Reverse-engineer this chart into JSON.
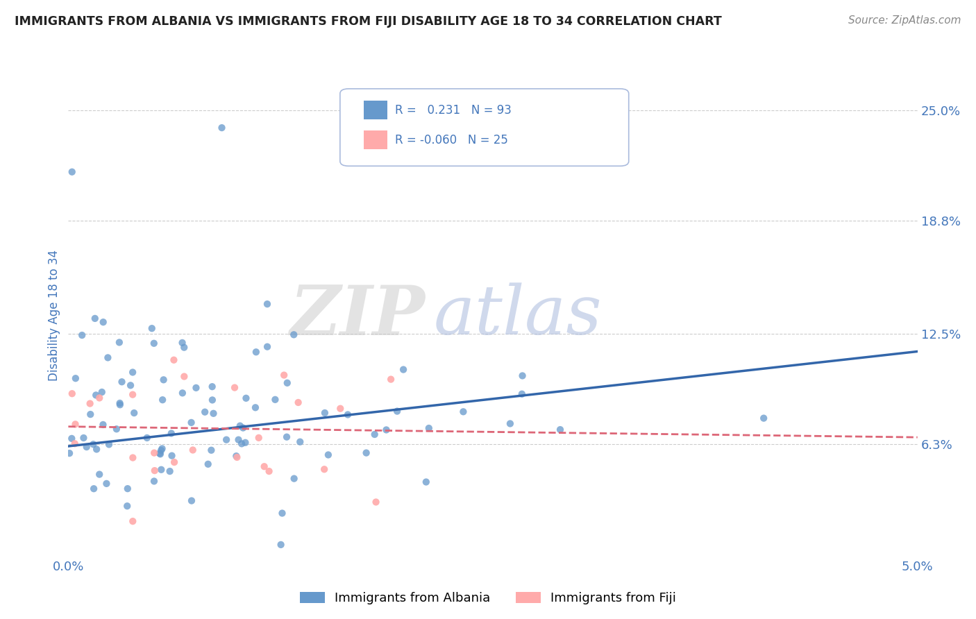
{
  "title": "IMMIGRANTS FROM ALBANIA VS IMMIGRANTS FROM FIJI DISABILITY AGE 18 TO 34 CORRELATION CHART",
  "source": "Source: ZipAtlas.com",
  "ylabel": "Disability Age 18 to 34",
  "ytick_labels": [
    "6.3%",
    "12.5%",
    "18.8%",
    "25.0%"
  ],
  "ytick_values": [
    0.063,
    0.125,
    0.188,
    0.25
  ],
  "xlim": [
    0.0,
    0.05
  ],
  "ylim": [
    0.0,
    0.27
  ],
  "albania_color": "#6699cc",
  "albania_line_color": "#3366aa",
  "fiji_color": "#ffaaaa",
  "fiji_line_color": "#dd6677",
  "albania_R": 0.231,
  "albania_N": 93,
  "fiji_R": -0.06,
  "fiji_N": 25,
  "albania_label": "Immigrants from Albania",
  "fiji_label": "Immigrants from Fiji",
  "title_color": "#222222",
  "axis_label_color": "#4477bb",
  "background_color": "#ffffff",
  "grid_color": "#cccccc",
  "legend_border_color": "#aabbdd",
  "watermark_zip_color": "#cccccc",
  "watermark_atlas_color": "#aabbdd",
  "albania_line_intercept": 0.06,
  "albania_line_slope": 1.0,
  "fiji_line_intercept": 0.072,
  "fiji_line_slope": -0.2
}
